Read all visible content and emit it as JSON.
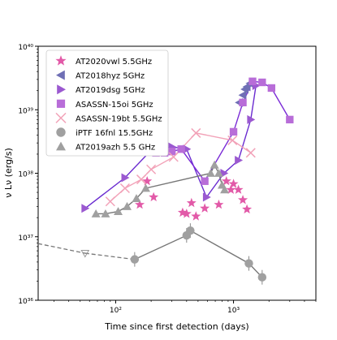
{
  "chart_data": {
    "type": "scatter",
    "xlabel": "Time since first detection (days)",
    "ylabel": "ν Lν (erg/s)",
    "xscale": "log",
    "yscale": "log",
    "xlim": [
      22,
      5000
    ],
    "ylim": [
      1e+36,
      1e+40
    ],
    "x_ticks": [
      {
        "v": 100,
        "label": "10²"
      },
      {
        "v": 1000,
        "label": "10³"
      }
    ],
    "y_ticks": [
      {
        "v": 1e+36,
        "label": "10³⁶"
      },
      {
        "v": 1e+37,
        "label": "10³⁷"
      },
      {
        "v": 1e+38,
        "label": "10³⁸"
      },
      {
        "v": 1e+39,
        "label": "10³⁹"
      },
      {
        "v": 1e+40,
        "label": "10⁴⁰"
      }
    ],
    "legend_position": "upper-left",
    "series": [
      {
        "name": "AT2020vwl 5.5GHz",
        "marker": "star",
        "color": "#e25aa8",
        "connected": false,
        "x": [
          160,
          185,
          210,
          370,
          400,
          440,
          480,
          570,
          750,
          870,
          950,
          1000,
          1100,
          1200,
          1300
        ],
        "y": [
          3.2e+37,
          7.5e+37,
          4.2e+37,
          2.4e+37,
          2.3e+37,
          3.4e+37,
          2.1e+37,
          2.8e+37,
          3.2e+37,
          7.5e+37,
          5.5e+37,
          6.8e+37,
          5.5e+37,
          3.8e+37,
          2.7e+37
        ]
      },
      {
        "name": "AT2018hyz 5GHz",
        "marker": "triangle-left",
        "color": "#6f6fb5",
        "connected": false,
        "x": [
          1120,
          1200,
          1250,
          1300,
          1380
        ],
        "y": [
          1.3e+39,
          1.7e+39,
          2.1e+39,
          2.3e+39,
          2.6e+39
        ]
      },
      {
        "name": "AT2019dsg 5GHz",
        "marker": "triangle-right",
        "color": "#9b59d0",
        "connected": true,
        "x": [
          55,
          120,
          200,
          300,
          400,
          590,
          830,
          1100,
          1400,
          1550
        ],
        "y": [
          2.8e+37,
          8.5e+37,
          2.3e+38,
          2.6e+38,
          2.4e+38,
          4.2e+37,
          1e+38,
          1.6e+38,
          7e+38,
          2.4e+39
        ]
      },
      {
        "name": "ASASSN-15oi 5GHz",
        "marker": "square",
        "color": "#b86dd8",
        "connected": true,
        "x": [
          180,
          200,
          220,
          260,
          300,
          360,
          570,
          1000,
          1200,
          1450,
          1750,
          2100,
          3000
        ],
        "y": [
          3.1e+38,
          2.8e+38,
          2.1e+38,
          2.1e+38,
          2.2e+38,
          2.4e+38,
          7.5e+37,
          4.5e+38,
          1.3e+39,
          2.8e+39,
          2.7e+39,
          2.2e+39,
          7e+38
        ]
      },
      {
        "name": "ASASSN-19bt 5.5GHz",
        "marker": "x",
        "color": "#f2a2b8",
        "connected": true,
        "x": [
          90,
          120,
          165,
          200,
          310,
          480,
          980,
          1400
        ],
        "y": [
          3.6e+37,
          5.8e+37,
          8e+37,
          1.15e+38,
          1.8e+38,
          4.3e+38,
          3.3e+38,
          2.1e+38
        ]
      },
      {
        "name": "iPTF 16fnl 15.5GHz",
        "marker": "circle",
        "color": "#a0a0a0",
        "connected": true,
        "x": [
          145,
          400,
          430,
          1350,
          1750
        ],
        "y": [
          4.4e+36,
          1.05e+37,
          1.25e+37,
          3.8e+36,
          2.3e+36
        ]
      },
      {
        "name": "AT2019azh 5.5 GHz",
        "marker": "triangle-up",
        "color": "#a0a0a0",
        "connected": true,
        "x": [
          68,
          82,
          105,
          125,
          150,
          180,
          640,
          690,
          750,
          800,
          840
        ],
        "y": [
          2.3e+37,
          2.3e+37,
          2.5e+37,
          3e+37,
          4e+37,
          5.8e+37,
          1e+38,
          1.35e+38,
          1e+38,
          6.5e+37,
          5.5e+37
        ]
      }
    ],
    "upper_limit": {
      "marker": "triangle-down-open",
      "color": "#999999",
      "x": 55,
      "y": 5.5e+36
    },
    "dashed_extension": {
      "x": [
        22,
        55
      ],
      "y": [
        7.8e+36,
        5.5e+36
      ]
    }
  }
}
